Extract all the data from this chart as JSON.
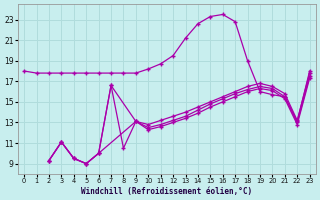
{
  "xlabel": "Windchill (Refroidissement éolien,°C)",
  "background_color": "#c8eeee",
  "grid_color": "#b0dcdc",
  "line_color": "#aa00aa",
  "xlim": [
    -0.5,
    23.5
  ],
  "ylim": [
    8.0,
    24.5
  ],
  "xticks": [
    0,
    1,
    2,
    3,
    4,
    5,
    6,
    7,
    8,
    9,
    10,
    11,
    12,
    13,
    14,
    15,
    16,
    17,
    18,
    19,
    20,
    21,
    22,
    23
  ],
  "yticks": [
    9,
    11,
    13,
    15,
    17,
    19,
    21,
    23
  ],
  "curve1_x": [
    0,
    1,
    2,
    3,
    4,
    5,
    6,
    7,
    8,
    9,
    10,
    11,
    12,
    13,
    14,
    15,
    16,
    17,
    18,
    19,
    20,
    21,
    22,
    23
  ],
  "curve1_y": [
    18.0,
    17.8,
    17.8,
    17.8,
    17.8,
    17.8,
    17.8,
    17.8,
    17.8,
    17.8,
    18.2,
    18.7,
    19.5,
    21.2,
    22.6,
    23.3,
    23.5,
    22.8,
    19.0,
    16.0,
    15.7,
    15.5,
    13.1,
    18.0
  ],
  "curve2_x": [
    2,
    3,
    4,
    5,
    6,
    7,
    8,
    9,
    10,
    11,
    12,
    13,
    14,
    15,
    16,
    17,
    18,
    19,
    20,
    21,
    22,
    23
  ],
  "curve2_y": [
    9.3,
    11.1,
    9.5,
    9.0,
    10.0,
    16.6,
    10.5,
    13.1,
    12.8,
    13.2,
    13.6,
    14.0,
    14.5,
    15.0,
    15.5,
    16.0,
    16.5,
    16.8,
    16.5,
    15.8,
    13.2,
    17.8
  ],
  "curve3_x": [
    2,
    3,
    4,
    5,
    6,
    7,
    9,
    10,
    11,
    12,
    13,
    14,
    15,
    16,
    17,
    18,
    19,
    20,
    21,
    22,
    23
  ],
  "curve3_y": [
    9.3,
    11.1,
    9.5,
    9.0,
    10.0,
    16.6,
    13.1,
    12.5,
    12.8,
    13.2,
    13.6,
    14.2,
    14.8,
    15.3,
    15.8,
    16.2,
    16.5,
    16.3,
    15.5,
    13.0,
    17.5
  ],
  "curve4_x": [
    2,
    3,
    4,
    5,
    6,
    9,
    10,
    11,
    12,
    13,
    14,
    15,
    16,
    17,
    18,
    19,
    20,
    21,
    22,
    23
  ],
  "curve4_y": [
    9.3,
    11.1,
    9.5,
    9.0,
    10.0,
    13.1,
    12.3,
    12.6,
    13.0,
    13.4,
    13.9,
    14.5,
    15.0,
    15.5,
    16.0,
    16.3,
    16.1,
    15.3,
    12.8,
    17.3
  ]
}
